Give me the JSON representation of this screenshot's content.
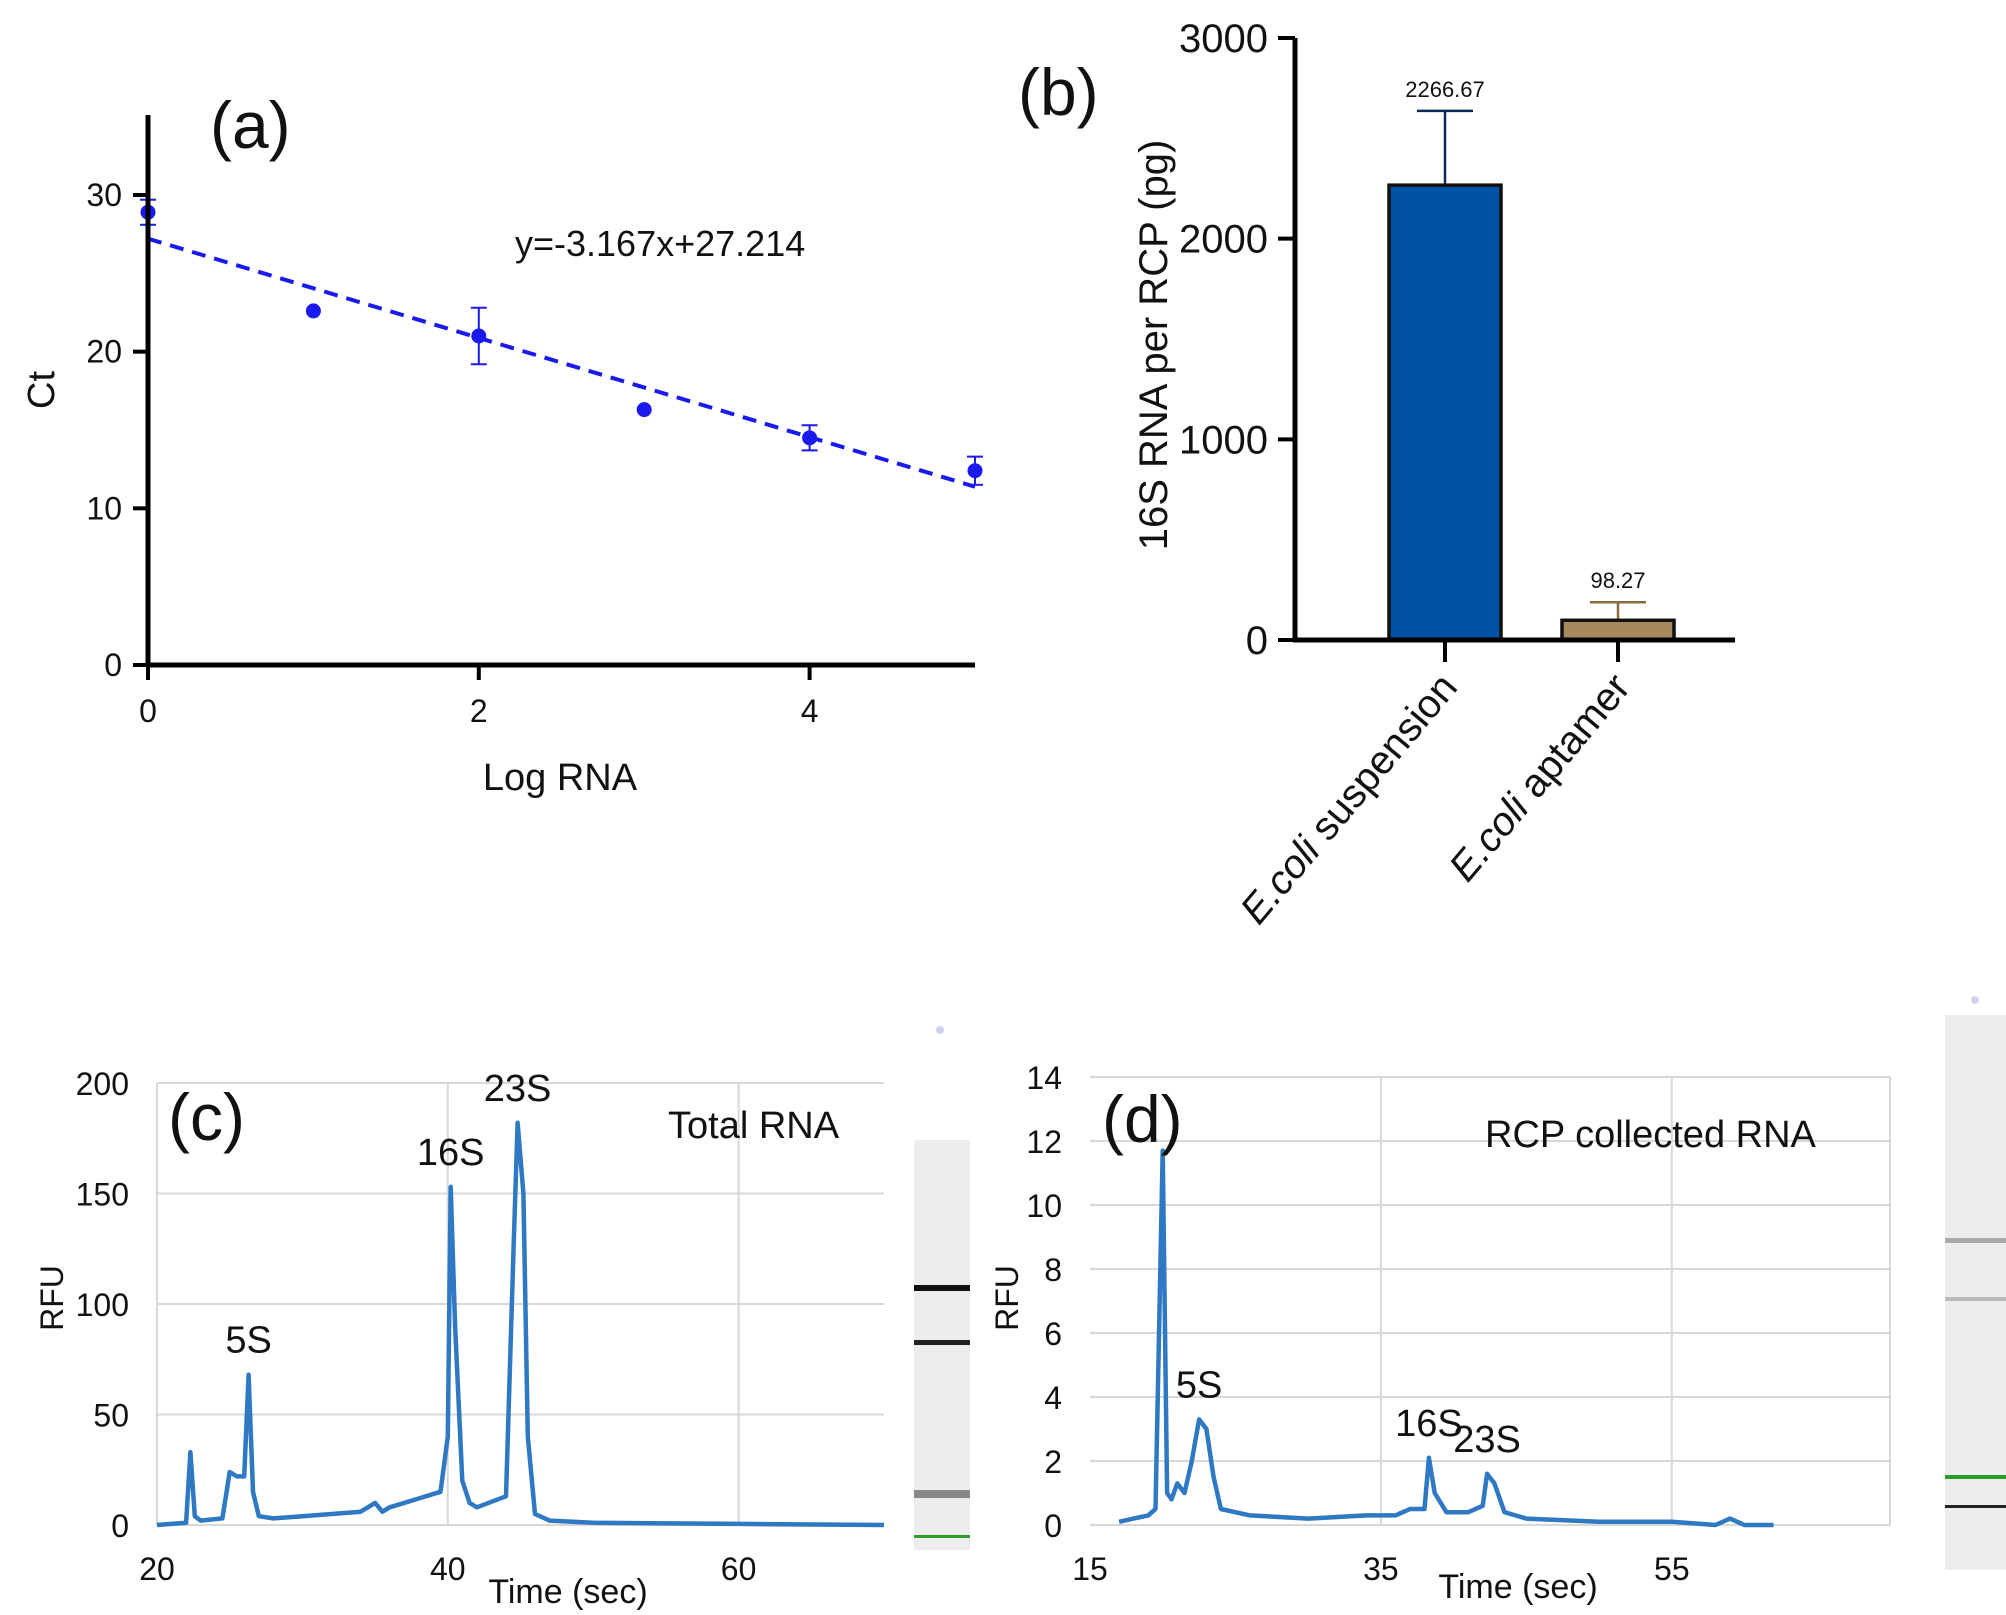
{
  "chart_data": [
    {
      "panel": "(a)",
      "type": "scatter",
      "title": "",
      "xlabel": "Log RNA",
      "ylabel": "Ct",
      "xlim": [
        0,
        5
      ],
      "ylim": [
        0,
        35
      ],
      "xticks": [
        0,
        2,
        4
      ],
      "yticks": [
        0,
        10,
        20,
        30
      ],
      "x": [
        0,
        1,
        2,
        3,
        4,
        5
      ],
      "y": [
        28.9,
        22.6,
        21.0,
        16.3,
        14.5,
        12.4
      ],
      "err": [
        0.8,
        0,
        1.8,
        0,
        0.8,
        0.9
      ],
      "fit": {
        "slope": -3.167,
        "intercept": 27.214,
        "label": "y=-3.167x+27.214"
      },
      "color": "#1a1aee"
    },
    {
      "panel": "(b)",
      "type": "bar",
      "title": "",
      "xlabel": "",
      "ylabel": "16S RNA per RCP (pg)",
      "ylim": [
        0,
        3000
      ],
      "yticks": [
        0,
        1000,
        2000,
        3000
      ],
      "categories": [
        {
          "italic": "E.coli",
          "rest": " suspension"
        },
        {
          "italic": "E.coli",
          "rest": " aptamer"
        }
      ],
      "values": [
        2266.67,
        98.27
      ],
      "errors": [
        370,
        90
      ],
      "data_labels": [
        "2266.67",
        "98.27"
      ],
      "colors": [
        "#0052a5",
        "#a6895c"
      ]
    },
    {
      "panel": "(c)",
      "type": "line",
      "title": "Total RNA",
      "xlabel": "Time (sec)",
      "ylabel": "RFU",
      "xlim": [
        20,
        70
      ],
      "ylim": [
        0,
        200
      ],
      "xticks": [
        20,
        40,
        60
      ],
      "yticks": [
        0,
        50,
        100,
        150,
        200
      ],
      "x": [
        20,
        22,
        22.3,
        22.6,
        23,
        24.5,
        25,
        25.5,
        26,
        26.3,
        26.6,
        27,
        28,
        30,
        32,
        34,
        35,
        35.5,
        36,
        38,
        39.5,
        40,
        40.2,
        40.5,
        41,
        41.5,
        42,
        44,
        44.5,
        44.8,
        45.2,
        45.5,
        46,
        47,
        50,
        60,
        70
      ],
      "y": [
        0,
        1,
        33,
        4,
        2,
        3,
        24,
        22,
        22,
        68,
        15,
        4,
        3,
        4,
        5,
        6,
        10,
        6,
        8,
        12,
        15,
        40,
        153,
        90,
        20,
        10,
        8,
        13,
        120,
        182,
        150,
        40,
        5,
        2,
        1,
        0.5,
        0
      ],
      "annotations": [
        {
          "text": "5S",
          "x": 26.3
        },
        {
          "text": "16S",
          "x": 40.2
        },
        {
          "text": "23S",
          "x": 44.8
        }
      ],
      "color": "#2f79c4"
    },
    {
      "panel": "(d)",
      "type": "line",
      "title": "RCP collected RNA",
      "xlabel": "Time (sec)",
      "ylabel": "RFU",
      "xlim": [
        15,
        70
      ],
      "ylim": [
        0,
        14
      ],
      "xticks": [
        15,
        35,
        55
      ],
      "yticks": [
        0,
        2,
        4,
        6,
        8,
        10,
        12,
        14
      ],
      "x": [
        17,
        18,
        19,
        19.5,
        20,
        20.3,
        20.6,
        21,
        21.5,
        22,
        22.5,
        23,
        23.5,
        24,
        26,
        30,
        34,
        36,
        37,
        38,
        38.3,
        38.7,
        39.5,
        41,
        42,
        42.3,
        42.8,
        43.5,
        45,
        50,
        55,
        58,
        59,
        60,
        62
      ],
      "y": [
        0.1,
        0.2,
        0.3,
        0.5,
        11.7,
        1.0,
        0.8,
        1.3,
        1.0,
        2.0,
        3.3,
        3.0,
        1.5,
        0.5,
        0.3,
        0.2,
        0.3,
        0.3,
        0.5,
        0.5,
        2.1,
        1.0,
        0.4,
        0.4,
        0.6,
        1.6,
        1.3,
        0.4,
        0.2,
        0.1,
        0.1,
        0.0,
        0.2,
        0.0,
        0.0
      ],
      "annotations": [
        {
          "text": "5S",
          "x": 22.5
        },
        {
          "text": "16S",
          "x": 38.3
        },
        {
          "text": "23S",
          "x": 42.3
        }
      ],
      "color": "#2f79c4"
    }
  ]
}
